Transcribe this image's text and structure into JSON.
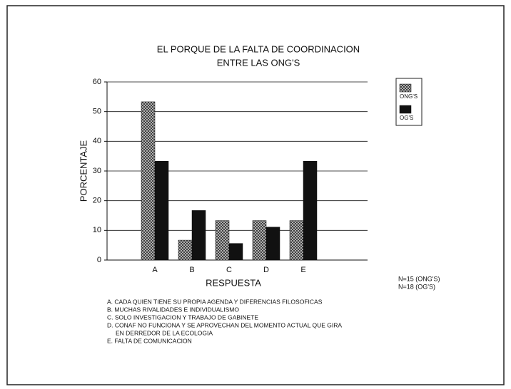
{
  "chart_data": {
    "type": "bar",
    "title": [
      "EL PORQUE DE LA FALTA DE COORDINACION",
      "ENTRE LAS ONG'S"
    ],
    "x_label": "RESPUESTA",
    "y_label": "PORCENTAJE",
    "categories": [
      "A",
      "B",
      "C",
      "D",
      "E"
    ],
    "series": [
      {
        "name": "ONG'S",
        "color": "#777777",
        "pattern": "crosshatch",
        "values": [
          53.3,
          6.7,
          13.3,
          13.3,
          13.3
        ]
      },
      {
        "name": "OG'S",
        "color": "#111111",
        "values": [
          33.3,
          16.7,
          5.6,
          11.1,
          33.3
        ]
      }
    ],
    "ylim": [
      0,
      60
    ],
    "yticks": [
      0,
      10,
      20,
      30,
      40,
      50,
      60
    ],
    "grid": true,
    "legend": "right",
    "sample_notes": [
      "N=15 (ONG'S)",
      "N=18 (OG'S)"
    ],
    "notes": [
      "A. CADA QUIEN TIENE SU PROPIA AGENDA Y DIFERENCIAS FILOSOFICAS",
      "B. MUCHAS RIVALIDADES E INDIVIDUALISMO",
      "C. SOLO INVESTIGACION Y TRABAJO DE GABINETE",
      "D. CONAF NO FUNCIONA Y SE APROVECHAN DEL MOMENTO ACTUAL QUE GIRA",
      "EN DERREDOR DE LA ECOLOGIA",
      "E. FALTA DE COMUNICACION"
    ]
  }
}
